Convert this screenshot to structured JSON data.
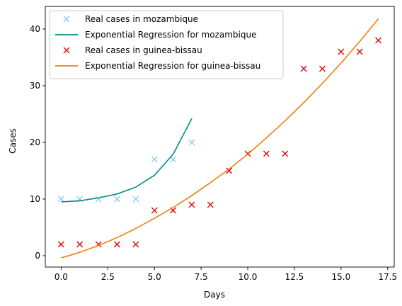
{
  "chart_data": {
    "type": "line",
    "title": "",
    "xlabel": "Days",
    "ylabel": "Cases",
    "xlim": [
      -0.85,
      17.85
    ],
    "ylim": [
      -2.0,
      44.0
    ],
    "xticks": [
      0.0,
      2.5,
      5.0,
      7.5,
      10.0,
      12.5,
      15.0,
      17.5
    ],
    "xtick_labels": [
      "0.0",
      "2.5",
      "5.0",
      "7.5",
      "10.0",
      "12.5",
      "15.0",
      "17.5"
    ],
    "yticks": [
      0,
      10,
      20,
      30,
      40
    ],
    "ytick_labels": [
      "0",
      "10",
      "20",
      "30",
      "40"
    ],
    "grid": false,
    "legend_position": "top-left",
    "series": [
      {
        "name": "Real cases in mozambique",
        "kind": "scatter",
        "marker": "x",
        "color": "#87ceeb",
        "x": [
          0,
          1,
          2,
          3,
          4,
          5,
          6,
          7
        ],
        "y": [
          10,
          10,
          10,
          10,
          10,
          17,
          17,
          20
        ]
      },
      {
        "name": "Exponential Regression for mozambique",
        "kind": "line",
        "color": "#008b80",
        "x": [
          0,
          1,
          2,
          3,
          4,
          5,
          6,
          7
        ],
        "y": [
          9.5,
          9.7,
          10.2,
          10.9,
          12.1,
          14.2,
          17.9,
          24.2
        ]
      },
      {
        "name": "Real cases in guinea-bissau",
        "kind": "scatter",
        "marker": "x",
        "color": "#e00000",
        "x": [
          0,
          1,
          2,
          3,
          4,
          5,
          6,
          7,
          8,
          9,
          10,
          11,
          12,
          13,
          14,
          15,
          16,
          17
        ],
        "y": [
          2,
          2,
          2,
          2,
          2,
          8,
          8,
          9,
          9,
          15,
          18,
          18,
          18,
          33,
          33,
          36,
          36,
          38
        ]
      },
      {
        "name": "Exponential Regression for guinea-bissau",
        "kind": "line",
        "color": "#f07f0e",
        "x": [
          0,
          1,
          2,
          3,
          4,
          5,
          6,
          7,
          8,
          9,
          10,
          11,
          12,
          13,
          14,
          15,
          16,
          17
        ],
        "y": [
          -0.4,
          0.6,
          1.8,
          3.2,
          4.8,
          6.6,
          8.5,
          10.6,
          12.9,
          15.3,
          17.9,
          20.8,
          23.8,
          27.0,
          30.4,
          34.0,
          37.8,
          41.8
        ]
      }
    ]
  }
}
